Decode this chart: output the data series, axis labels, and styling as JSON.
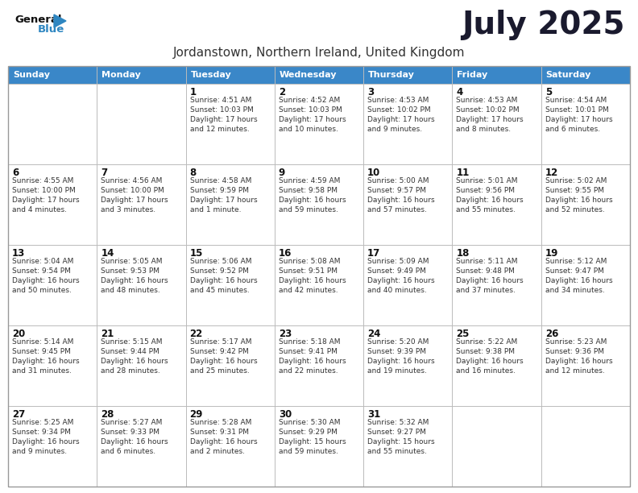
{
  "title": "July 2025",
  "subtitle": "Jordanstown, Northern Ireland, United Kingdom",
  "header_color": "#3A87C8",
  "header_text_color": "#FFFFFF",
  "bg_color": "#FFFFFF",
  "border_color": "#CCCCCC",
  "days_of_week": [
    "Sunday",
    "Monday",
    "Tuesday",
    "Wednesday",
    "Thursday",
    "Friday",
    "Saturday"
  ],
  "cell_data": [
    [
      "",
      "",
      "1\nSunrise: 4:51 AM\nSunset: 10:03 PM\nDaylight: 17 hours\nand 12 minutes.",
      "2\nSunrise: 4:52 AM\nSunset: 10:03 PM\nDaylight: 17 hours\nand 10 minutes.",
      "3\nSunrise: 4:53 AM\nSunset: 10:02 PM\nDaylight: 17 hours\nand 9 minutes.",
      "4\nSunrise: 4:53 AM\nSunset: 10:02 PM\nDaylight: 17 hours\nand 8 minutes.",
      "5\nSunrise: 4:54 AM\nSunset: 10:01 PM\nDaylight: 17 hours\nand 6 minutes."
    ],
    [
      "6\nSunrise: 4:55 AM\nSunset: 10:00 PM\nDaylight: 17 hours\nand 4 minutes.",
      "7\nSunrise: 4:56 AM\nSunset: 10:00 PM\nDaylight: 17 hours\nand 3 minutes.",
      "8\nSunrise: 4:58 AM\nSunset: 9:59 PM\nDaylight: 17 hours\nand 1 minute.",
      "9\nSunrise: 4:59 AM\nSunset: 9:58 PM\nDaylight: 16 hours\nand 59 minutes.",
      "10\nSunrise: 5:00 AM\nSunset: 9:57 PM\nDaylight: 16 hours\nand 57 minutes.",
      "11\nSunrise: 5:01 AM\nSunset: 9:56 PM\nDaylight: 16 hours\nand 55 minutes.",
      "12\nSunrise: 5:02 AM\nSunset: 9:55 PM\nDaylight: 16 hours\nand 52 minutes."
    ],
    [
      "13\nSunrise: 5:04 AM\nSunset: 9:54 PM\nDaylight: 16 hours\nand 50 minutes.",
      "14\nSunrise: 5:05 AM\nSunset: 9:53 PM\nDaylight: 16 hours\nand 48 minutes.",
      "15\nSunrise: 5:06 AM\nSunset: 9:52 PM\nDaylight: 16 hours\nand 45 minutes.",
      "16\nSunrise: 5:08 AM\nSunset: 9:51 PM\nDaylight: 16 hours\nand 42 minutes.",
      "17\nSunrise: 5:09 AM\nSunset: 9:49 PM\nDaylight: 16 hours\nand 40 minutes.",
      "18\nSunrise: 5:11 AM\nSunset: 9:48 PM\nDaylight: 16 hours\nand 37 minutes.",
      "19\nSunrise: 5:12 AM\nSunset: 9:47 PM\nDaylight: 16 hours\nand 34 minutes."
    ],
    [
      "20\nSunrise: 5:14 AM\nSunset: 9:45 PM\nDaylight: 16 hours\nand 31 minutes.",
      "21\nSunrise: 5:15 AM\nSunset: 9:44 PM\nDaylight: 16 hours\nand 28 minutes.",
      "22\nSunrise: 5:17 AM\nSunset: 9:42 PM\nDaylight: 16 hours\nand 25 minutes.",
      "23\nSunrise: 5:18 AM\nSunset: 9:41 PM\nDaylight: 16 hours\nand 22 minutes.",
      "24\nSunrise: 5:20 AM\nSunset: 9:39 PM\nDaylight: 16 hours\nand 19 minutes.",
      "25\nSunrise: 5:22 AM\nSunset: 9:38 PM\nDaylight: 16 hours\nand 16 minutes.",
      "26\nSunrise: 5:23 AM\nSunset: 9:36 PM\nDaylight: 16 hours\nand 12 minutes."
    ],
    [
      "27\nSunrise: 5:25 AM\nSunset: 9:34 PM\nDaylight: 16 hours\nand 9 minutes.",
      "28\nSunrise: 5:27 AM\nSunset: 9:33 PM\nDaylight: 16 hours\nand 6 minutes.",
      "29\nSunrise: 5:28 AM\nSunset: 9:31 PM\nDaylight: 16 hours\nand 2 minutes.",
      "30\nSunrise: 5:30 AM\nSunset: 9:29 PM\nDaylight: 15 hours\nand 59 minutes.",
      "31\nSunrise: 5:32 AM\nSunset: 9:27 PM\nDaylight: 15 hours\nand 55 minutes.",
      "",
      ""
    ]
  ],
  "logo_general_color": "#111111",
  "logo_blue_color": "#2E86C1",
  "logo_triangle_color": "#2E86C1",
  "title_color": "#1a1a2e",
  "subtitle_color": "#333333"
}
